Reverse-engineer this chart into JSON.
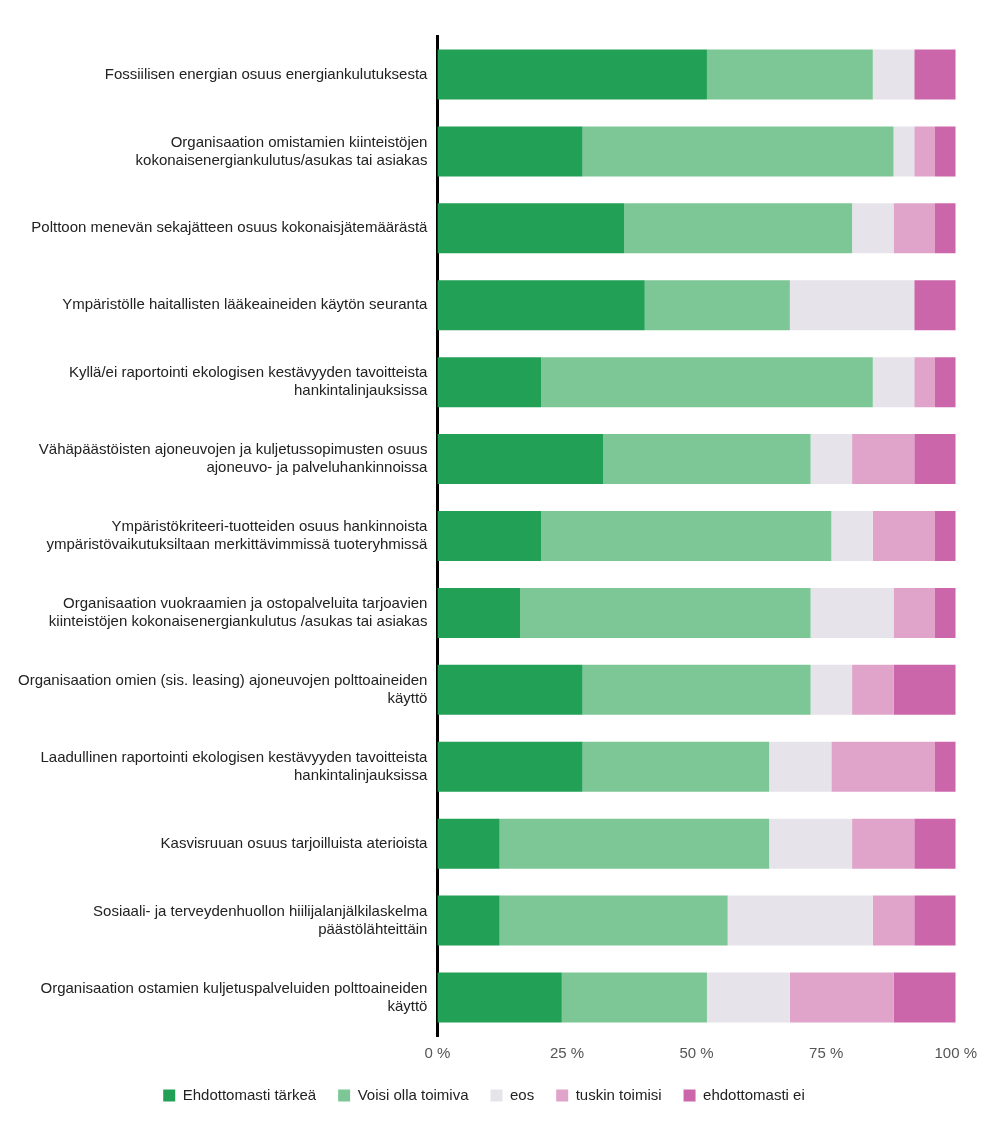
{
  "chart_data": {
    "type": "bar",
    "orientation": "horizontal",
    "stacked": true,
    "categories": [
      "Fossiilisen energian osuus energiankulutuksesta",
      "Organisaation omistamien kiinteistöjen kokonaisenergiankulutus/asukas tai asiakas",
      "Polttoon menevän sekajätteen osuus kokonaisjätemäärästä",
      "Ympäristölle haitallisten lääkeaineiden käytön seuranta",
      "Kyllä/ei raportointi ekologisen kestävyyden tavoitteista hankintalinjauksissa",
      "Vähäpäästöisten ajoneuvojen ja kuljetussopimusten osuus ajoneuvo- ja palveluhankinnoissa",
      "Ympäristökriteeri-tuotteiden osuus hankinnoista ympäristövaikutuksiltaan merkittävimmissä tuoteryhmissä",
      "Organisaation vuokraamien ja ostopalveluita tarjoavien kiinteistöjen kokonaisenergiankulutus /asukas tai asiakas",
      "Organisaation omien (sis. leasing) ajoneuvojen polttoaineiden käyttö",
      "Laadullinen raportointi ekologisen kestävyyden tavoitteista hankintalinjauksissa",
      "Kasvisruuan osuus tarjoilluista aterioista",
      "Sosiaali- ja terveydenhuollon hiilijalanjälkilaskelma päästölähteittäin",
      "Organisaation ostamien kuljetuspalveluiden polttoaineiden käyttö"
    ],
    "series": [
      {
        "name": "Ehdottomasti tärkeä",
        "color": "#22a055",
        "values": [
          52,
          28,
          36,
          40,
          20,
          32,
          20,
          16,
          28,
          28,
          12,
          12,
          24
        ]
      },
      {
        "name": "Voisi olla toimiva",
        "color": "#7dc796",
        "values": [
          32,
          60,
          44,
          28,
          64,
          40,
          56,
          56,
          44,
          36,
          52,
          44,
          28
        ]
      },
      {
        "name": "eos",
        "color": "#e6e3ea",
        "values": [
          8,
          4,
          8,
          24,
          8,
          8,
          8,
          16,
          8,
          12,
          16,
          28,
          16
        ]
      },
      {
        "name": "tuskin toimisi",
        "color": "#e0a4cb",
        "values": [
          0,
          4,
          8,
          0,
          4,
          12,
          12,
          8,
          8,
          20,
          12,
          8,
          20
        ]
      },
      {
        "name": "ehdottomasti ei",
        "color": "#cc66aa",
        "values": [
          8,
          4,
          4,
          8,
          4,
          8,
          4,
          4,
          12,
          4,
          8,
          8,
          12
        ]
      }
    ],
    "xlim": [
      0,
      100
    ],
    "xticks": [
      {
        "value": 0,
        "label": "0 %"
      },
      {
        "value": 25,
        "label": "25 %"
      },
      {
        "value": 50,
        "label": "50 %"
      },
      {
        "value": 75,
        "label": "75 %"
      },
      {
        "value": 100,
        "label": "100 %"
      }
    ],
    "grid": false,
    "legend": "bottom"
  }
}
